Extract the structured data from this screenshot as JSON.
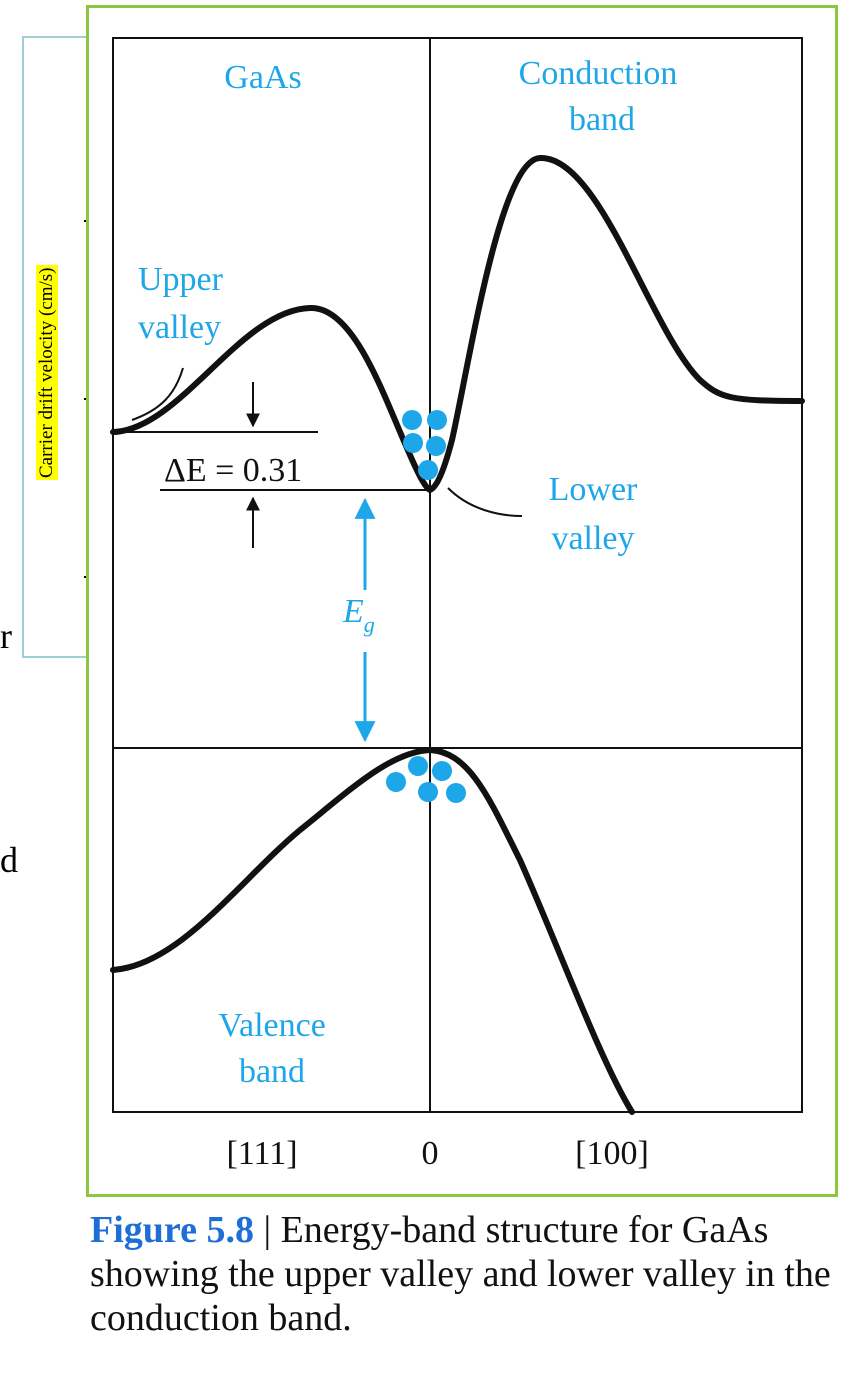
{
  "background": {
    "y_axis_label": "Carrier drift velocity (cm/s)",
    "stray_chars": [
      "r",
      "d"
    ]
  },
  "diagram": {
    "material_label": "GaAs",
    "conduction_band_label_line1": "Conduction",
    "conduction_band_label_line2": "band",
    "upper_valley_line1": "Upper",
    "upper_valley_line2": "valley",
    "lower_valley_line1": "Lower",
    "lower_valley_line2": "valley",
    "delta_e_label": "ΔE = 0.31",
    "eg_label_main": "E",
    "eg_label_sub": "g",
    "valence_band_line1": "Valence",
    "valence_band_line2": "band",
    "x_tick_left": "[111]",
    "x_tick_center": "0",
    "x_tick_right": "[100]",
    "colors": {
      "accent": "#1ea7e8",
      "curve": "#111111",
      "frame": "#8dc63f"
    }
  },
  "caption": {
    "figure_number": "Figure 5.8",
    "separator": "|",
    "text": " Energy-band structure for GaAs showing the upper valley and lower valley in the conduction band."
  }
}
